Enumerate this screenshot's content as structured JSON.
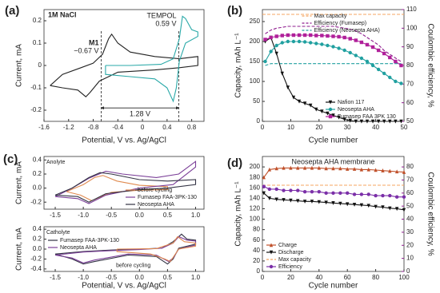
{
  "chart_data": [
    {
      "type": "line",
      "label": "(a)",
      "xlabel": "Potential, V vs. Ag/AgCl",
      "ylabel": "Current, mA",
      "xlim": [
        -1.6,
        1.0
      ],
      "xticks": [
        -1.6,
        -1.2,
        -0.8,
        -0.4,
        0,
        0.4,
        0.8
      ],
      "ylim": [
        -0.25,
        0.25
      ],
      "yticks": [
        -0.2,
        -0.1,
        0,
        0.1,
        0.2
      ],
      "vlines": [
        -0.67,
        0.59
      ],
      "annotations": [
        "1M NaCl",
        "M1",
        "−0.67 V",
        "TEMPOL",
        "0.59 V",
        "1.28 V"
      ],
      "series": [
        {
          "color": "#222222",
          "x": [
            -1.5,
            -1.3,
            -1.0,
            -0.8,
            -0.65,
            -0.55,
            -0.5,
            -0.4,
            -0.2,
            0.2,
            0.6,
            0.9,
            0.9,
            0.6,
            0.2,
            -0.4,
            -0.7,
            -0.85,
            -0.92,
            -1.05,
            -1.3,
            -1.5
          ],
          "values": [
            -0.09,
            -0.04,
            -0.01,
            0.01,
            0.05,
            0.12,
            0.14,
            0.1,
            0.06,
            0.04,
            0.03,
            0.04,
            0.0,
            -0.01,
            -0.02,
            -0.03,
            -0.07,
            -0.12,
            -0.14,
            -0.11,
            -0.1,
            -0.09
          ]
        },
        {
          "color": "#2aa9a8",
          "x": [
            -0.6,
            -0.2,
            0.3,
            0.5,
            0.6,
            0.65,
            0.7,
            0.8,
            0.9,
            0.9,
            0.7,
            0.6,
            0.55,
            0.5,
            0.4,
            0.2,
            -0.2,
            -0.6,
            -0.6
          ],
          "values": [
            0.0,
            0.0,
            0.005,
            0.03,
            0.12,
            0.22,
            0.21,
            0.16,
            0.15,
            0.13,
            0.1,
            0.02,
            -0.1,
            -0.16,
            -0.1,
            -0.06,
            -0.05,
            -0.04,
            0.0
          ]
        }
      ]
    },
    {
      "type": "line",
      "label": "(b)",
      "xlabel": "Cycle number",
      "ylabel": "Capacity, mAh L⁻¹",
      "y2label": "Coulombic efficiency, %",
      "y2color": "#8e1b8e",
      "xlim": [
        0,
        50
      ],
      "xticks": [
        0,
        10,
        20,
        30,
        40,
        50
      ],
      "ylim": [
        0,
        280
      ],
      "yticks": [
        0,
        50,
        100,
        150,
        200,
        250
      ],
      "y2lim": [
        50,
        110
      ],
      "y2ticks": [
        50,
        60,
        70,
        80,
        90,
        100,
        110
      ],
      "x": [
        1,
        3,
        5,
        7,
        9,
        11,
        13,
        15,
        17,
        19,
        21,
        23,
        25,
        27,
        29,
        31,
        33,
        35,
        37,
        39,
        41,
        43,
        45,
        47,
        49
      ],
      "series": [
        {
          "name": "Max capacity",
          "color": "#f4a460",
          "dash": true,
          "legend": "upper center",
          "x": [
            0,
            50
          ],
          "values": [
            268,
            268
          ]
        },
        {
          "name": "Efficiency (Fumasep)",
          "color": "#8e1b8e",
          "dash": true,
          "legend": "upper center",
          "axis": "y2",
          "values": [
            97,
            99,
            100,
            100.5,
            101,
            101,
            101,
            101,
            101,
            101,
            101,
            101,
            101,
            100.5,
            100,
            99.5,
            98.5,
            97,
            95,
            93,
            91,
            88,
            86,
            84,
            82
          ]
        },
        {
          "name": "Efficiency (Neosepta AHA)",
          "color": "#20a0a0",
          "dash": true,
          "legend": "upper center",
          "axis": "y2",
          "values": [
            80,
            81,
            81,
            81,
            81,
            81,
            81,
            81,
            81,
            81,
            81,
            81,
            81,
            81,
            81,
            81,
            81,
            81,
            81,
            81,
            81,
            81,
            81,
            81,
            81
          ]
        },
        {
          "name": "Nafion 117",
          "color": "#111111",
          "marker": "triangle-down",
          "legend": "lower right",
          "values": [
            200,
            210,
            170,
            120,
            85,
            60,
            50,
            45,
            40,
            30,
            25,
            20,
            15,
            10,
            5,
            2,
            0,
            0,
            0,
            0,
            0,
            0,
            0,
            0,
            0
          ]
        },
        {
          "name": "Neosepta AHA",
          "color": "#20a0a0",
          "marker": "circle",
          "legend": "lower right",
          "values": [
            150,
            175,
            190,
            197,
            200,
            200,
            200,
            199,
            197,
            195,
            193,
            190,
            187,
            183,
            178,
            172,
            165,
            158,
            150,
            140,
            130,
            120,
            110,
            100,
            95
          ]
        },
        {
          "name": "Fumasep FAA 3PK 130",
          "color": "#b0209a",
          "marker": "square",
          "legend": "lower right",
          "values": [
            205,
            210,
            213,
            215,
            216,
            216,
            216,
            216,
            216,
            215,
            215,
            214,
            213,
            212,
            210,
            207,
            203,
            198,
            192,
            186,
            178,
            170,
            160,
            150,
            140
          ]
        }
      ]
    },
    {
      "type": "line",
      "label": "(c)",
      "title": "Anolyte",
      "ylabel": "Current, mA",
      "legend": "lower right",
      "xlim": [
        -1.7,
        1.15
      ],
      "xticks": [
        -1.5,
        {
          "value": -1,
          "label": "-1.0"
        },
        -0.5,
        {
          "value": 0,
          "label": "0.0"
        },
        0.5,
        {
          "value": 1,
          "label": "1.0"
        }
      ],
      "ylim": [
        -0.3,
        0.45
      ],
      "yticks": [
        0.4,
        0.2,
        {
          "value": 0,
          "label": "0.0"
        },
        -0.2
      ],
      "series": [
        {
          "name": "before cycling",
          "color": "#e08a50",
          "x": [
            -1.3,
            -1.0,
            -0.8,
            -0.65,
            -0.4,
            0,
            0.5,
            0.5,
            0,
            -0.5,
            -0.85,
            -1.05,
            -1.3
          ],
          "values": [
            -0.05,
            0.05,
            0.15,
            0.18,
            0.1,
            0.04,
            0.02,
            -0.02,
            -0.03,
            -0.06,
            -0.18,
            -0.1,
            -0.05
          ]
        },
        {
          "name": "Fumasep FAA-3PK-130",
          "color": "#7b3f98",
          "x": [
            -1.5,
            -1.2,
            -0.9,
            -0.6,
            -0.3,
            0.3,
            0.7,
            1.0,
            1.0,
            0.6,
            0,
            -0.6,
            -0.9,
            -1.1,
            -1.5
          ],
          "values": [
            -0.12,
            0.0,
            0.14,
            0.24,
            0.2,
            0.15,
            0.2,
            0.38,
            0.3,
            0.05,
            0.0,
            -0.1,
            -0.22,
            -0.15,
            -0.12
          ]
        },
        {
          "name": "Neosepta AHA",
          "color": "#333344",
          "x": [
            -1.5,
            -1.2,
            -0.9,
            -0.7,
            -0.5,
            0,
            0.5,
            1.0,
            1.0,
            0.5,
            0,
            -0.6,
            -0.9,
            -1.1,
            -1.5
          ],
          "values": [
            -0.1,
            0.0,
            0.15,
            0.22,
            0.2,
            0.12,
            0.1,
            0.12,
            0.05,
            0.0,
            -0.02,
            -0.08,
            -0.2,
            -0.12,
            -0.1
          ]
        }
      ]
    },
    {
      "type": "line",
      "title": "Catholyte",
      "xlabel": "Potential, V vs. Ag/AgCl",
      "ylabel": "Current, mA",
      "legend": "upper left",
      "annotations": [
        "before cycling"
      ],
      "xlim": [
        -1.7,
        1.15
      ],
      "xticks": [
        -1.5,
        {
          "value": -1,
          "label": "-1.0"
        },
        -0.5,
        {
          "value": 0,
          "label": "0.0"
        },
        0.5,
        {
          "value": 1,
          "label": "1.0"
        }
      ],
      "ylim": [
        -0.45,
        0.45
      ],
      "yticks": [
        0.4,
        0.2,
        {
          "value": 0,
          "label": "0.0"
        },
        -0.2,
        -0.4
      ],
      "series": [
        {
          "name": "Fumasep FAA-3PK-130",
          "color": "#333344",
          "x": [
            -1.5,
            -1.0,
            -0.5,
            0,
            0.4,
            0.6,
            0.75,
            0.85,
            1.0,
            1.0,
            0.7,
            0.6,
            0.5,
            0.3,
            -0.2,
            -0.8,
            -1.0,
            -1.2,
            -1.5
          ],
          "values": [
            -0.1,
            -0.05,
            -0.02,
            0.0,
            0.02,
            0.15,
            0.3,
            0.2,
            0.18,
            0.1,
            0.02,
            -0.2,
            -0.3,
            -0.15,
            -0.12,
            -0.25,
            -0.3,
            -0.2,
            -0.1
          ]
        },
        {
          "name": "Neosepta AHA",
          "color": "#7b3f98",
          "x": [
            -1.5,
            -1.0,
            -0.5,
            0,
            0.4,
            0.6,
            0.7,
            0.85,
            1.0,
            1.0,
            0.7,
            0.6,
            0.52,
            0.3,
            -0.2,
            -0.8,
            -1.0,
            -1.2,
            -1.5
          ],
          "values": [
            -0.12,
            -0.06,
            -0.03,
            -0.01,
            0.02,
            0.12,
            0.25,
            0.18,
            0.16,
            0.08,
            0.0,
            -0.18,
            -0.25,
            -0.12,
            -0.1,
            -0.22,
            -0.28,
            -0.18,
            -0.12
          ]
        },
        {
          "color": "#e08a50",
          "x": [
            -0.4,
            0.3,
            0.6,
            0.68,
            0.8,
            1.0,
            1.0,
            0.7,
            0.55,
            0.45,
            0.2,
            -0.4,
            -0.4
          ],
          "values": [
            0.0,
            0.01,
            0.12,
            0.25,
            0.15,
            0.12,
            0.06,
            0.0,
            -0.25,
            -0.2,
            -0.1,
            -0.05,
            0.0
          ]
        }
      ]
    },
    {
      "type": "line",
      "label": "(d)",
      "title": "Neosepta AHA membrane",
      "xlabel": "Cycle number",
      "ylabel": "Capacity, mAh L⁻¹",
      "y2label": "Coulombic efficiency, %",
      "y2color": "#8e1b8e",
      "legend": "lower left",
      "xlim": [
        0,
        100
      ],
      "xticks": [
        0,
        20,
        40,
        60,
        80,
        100
      ],
      "ylim": [
        0,
        220
      ],
      "yticks": [
        0,
        20,
        40,
        60,
        80,
        100,
        120,
        140,
        160,
        180,
        200
      ],
      "y2lim": [
        0,
        88
      ],
      "y2ticks": [
        0,
        10,
        20,
        30,
        40,
        50,
        60,
        70,
        80
      ],
      "x": [
        1,
        5,
        10,
        15,
        20,
        25,
        30,
        35,
        40,
        45,
        50,
        55,
        60,
        65,
        70,
        75,
        80,
        85,
        90,
        95,
        100
      ],
      "series": [
        {
          "name": "Charge",
          "color": "#c0502a",
          "marker": "triangle",
          "values": [
            180,
            195,
            197,
            198,
            198,
            198,
            198,
            198,
            198,
            197,
            197,
            197,
            196,
            196,
            195,
            195,
            194,
            193,
            192,
            191,
            190
          ]
        },
        {
          "name": "Discharge",
          "color": "#111111",
          "marker": "triangle-down",
          "values": [
            150,
            140,
            138,
            137,
            136,
            135,
            134,
            134,
            133,
            132,
            131,
            130,
            129,
            128,
            127,
            126,
            124,
            123,
            121,
            120,
            118
          ]
        },
        {
          "name": "Max capacity",
          "color": "#f4a460",
          "dash": true,
          "x": [
            0,
            100
          ],
          "values": [
            165,
            165
          ]
        },
        {
          "name": "Efficiency",
          "color": "#7b2fa8",
          "marker": "circle",
          "axis": "y2",
          "values": [
            65,
            63,
            63,
            62,
            62,
            62,
            61,
            61,
            61,
            60,
            60,
            60,
            60,
            59,
            59,
            59,
            58,
            58,
            58,
            57,
            57
          ]
        }
      ]
    }
  ]
}
